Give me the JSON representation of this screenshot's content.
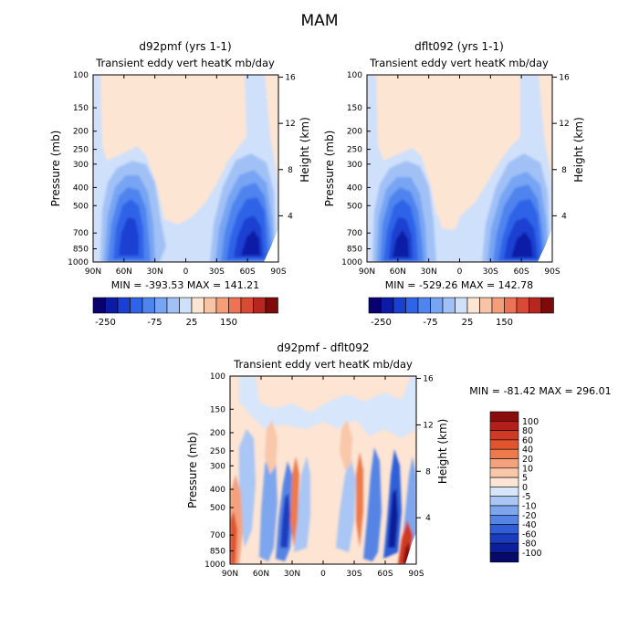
{
  "figure_title": "MAM",
  "chart_data": [
    {
      "type": "heatmap",
      "title": "d92pmf (yrs 1-1)",
      "subtitle": "Transient eddy vert heatK mb/day",
      "xlabel": "",
      "ylabel": "Pressure (mb)",
      "y2label": "Height (km)",
      "x_ticks": [
        "90N",
        "60N",
        "30N",
        "0",
        "30S",
        "60S",
        "90S"
      ],
      "y_ticks": [
        "100",
        "150",
        "200",
        "250",
        "300",
        "400",
        "500",
        "700",
        "850",
        "1000"
      ],
      "y2_ticks": [
        "16",
        "12",
        "8",
        "4"
      ],
      "stats": "MIN = -393.53   MAX = 141.21",
      "colorbar_labels": [
        "-250",
        "-75",
        "25",
        "150"
      ]
    },
    {
      "type": "heatmap",
      "title": "dflt092 (yrs 1-1)",
      "subtitle": "Transient eddy vert heatK mb/day",
      "xlabel": "",
      "ylabel": "Pressure (mb)",
      "y2label": "Height (km)",
      "x_ticks": [
        "90N",
        "60N",
        "30N",
        "0",
        "30S",
        "60S",
        "90S"
      ],
      "y_ticks": [
        "100",
        "150",
        "200",
        "250",
        "300",
        "400",
        "500",
        "700",
        "850",
        "1000"
      ],
      "y2_ticks": [
        "16",
        "12",
        "8",
        "4"
      ],
      "stats": "MIN = -529.26   MAX = 142.78",
      "colorbar_labels": [
        "-250",
        "-75",
        "25",
        "150"
      ]
    },
    {
      "type": "heatmap",
      "title": "d92pmf - dflt092",
      "subtitle": "Transient eddy vert heatK mb/day",
      "xlabel": "",
      "ylabel": "Pressure (mb)",
      "y2label": "Height (km)",
      "x_ticks": [
        "90N",
        "60N",
        "30N",
        "0",
        "30S",
        "60S",
        "90S"
      ],
      "y_ticks": [
        "100",
        "150",
        "200",
        "250",
        "300",
        "400",
        "500",
        "700",
        "850",
        "1000"
      ],
      "y2_ticks": [
        "16",
        "12",
        "8",
        "4"
      ],
      "stats": "MIN = -81.42   MAX = 296.01",
      "colorbar_labels": [
        "100",
        "80",
        "60",
        "40",
        "20",
        "10",
        "5",
        "0",
        "-5",
        "-10",
        "-20",
        "-40",
        "-60",
        "-80",
        "-100"
      ]
    }
  ],
  "colors": {
    "scale_small": [
      "#08006f",
      "#0d1aa6",
      "#1a3fd1",
      "#2f63e8",
      "#4f84ef",
      "#77a5f3",
      "#a1c1f6",
      "#cfe0fb",
      "#fde5d3",
      "#f9c3a6",
      "#f59e7a",
      "#ec7355",
      "#d94a35",
      "#b7261f",
      "#7f0a0c"
    ],
    "scale_diff": [
      "#8a0c0c",
      "#b3201b",
      "#cf3a24",
      "#e0552e",
      "#ec7a4c",
      "#f4a27e",
      "#f9c7a9",
      "#fde4d3",
      "#d7e6fb",
      "#a9c6f4",
      "#7ea6ee",
      "#5584e5",
      "#2f5ed8",
      "#1a3cbf",
      "#0a1f99",
      "#060a6b"
    ]
  }
}
